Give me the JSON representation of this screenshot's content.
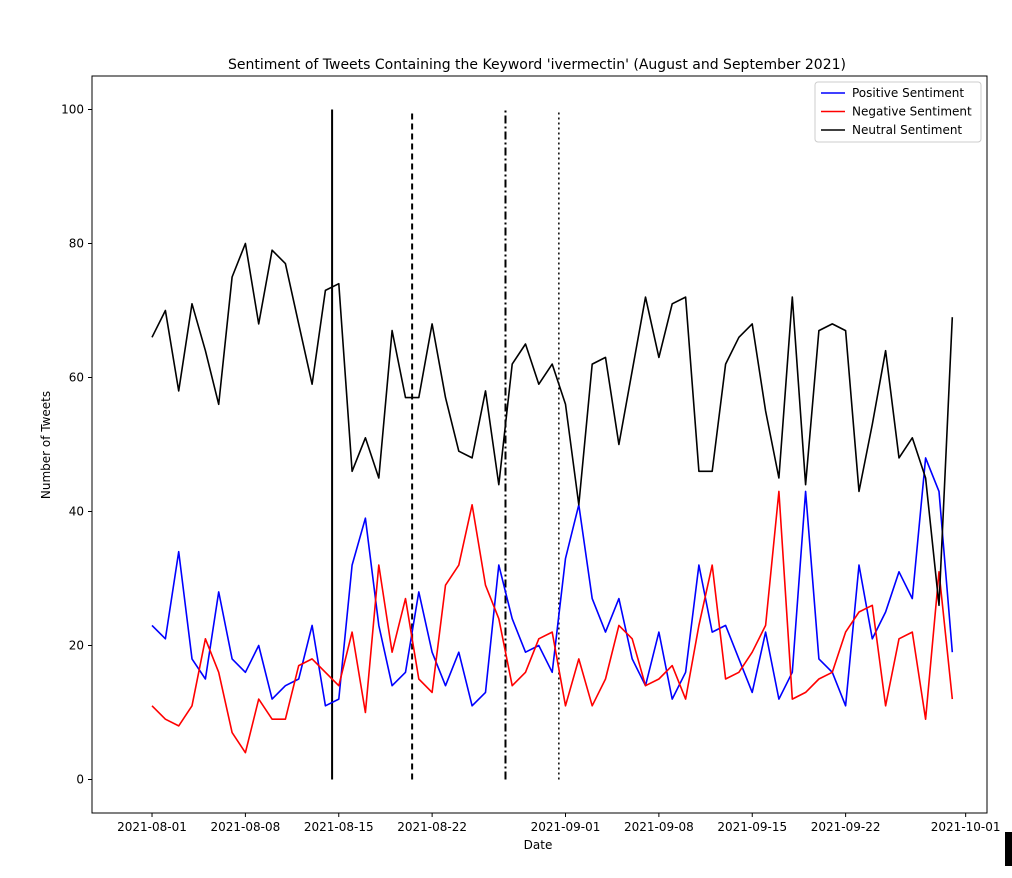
{
  "chart_data": {
    "type": "line",
    "title": "Sentiment of Tweets Containing the Keyword 'ivermectin' (August and September 2021)",
    "xlabel": "Date",
    "ylabel": "Number of Tweets",
    "xlim": [
      -4.5,
      62.6
    ],
    "ylim": [
      -5,
      105
    ],
    "y_ticks": [
      0,
      20,
      40,
      60,
      80,
      100
    ],
    "x_ticks": [
      {
        "label": "2021-08-01",
        "day": 0
      },
      {
        "label": "2021-08-08",
        "day": 7
      },
      {
        "label": "2021-08-15",
        "day": 14
      },
      {
        "label": "2021-08-22",
        "day": 21
      },
      {
        "label": "2021-09-01",
        "day": 31
      },
      {
        "label": "2021-09-08",
        "day": 38
      },
      {
        "label": "2021-09-15",
        "day": 45
      },
      {
        "label": "2021-09-22",
        "day": 52
      },
      {
        "label": "2021-10-01",
        "day": 61
      }
    ],
    "x_start_date": "2021-08-01",
    "legend_position": "upper right",
    "series": [
      {
        "name": "Positive Sentiment",
        "color": "#0000ff",
        "values": [
          23,
          21,
          34,
          18,
          15,
          28,
          18,
          16,
          20,
          12,
          14,
          15,
          23,
          11,
          12,
          32,
          39,
          23,
          14,
          16,
          28,
          19,
          14,
          19,
          11,
          13,
          32,
          24,
          19,
          20,
          16,
          33,
          41,
          27,
          22,
          27,
          18,
          14,
          22,
          12,
          16,
          32,
          22,
          23,
          18,
          13,
          22,
          12,
          16,
          43,
          18,
          16,
          11,
          32,
          21,
          25,
          31,
          27,
          48,
          43,
          19
        ]
      },
      {
        "name": "Negative Sentiment",
        "color": "#ff0000",
        "values": [
          11,
          9,
          8,
          11,
          21,
          16,
          7,
          4,
          12,
          9,
          9,
          17,
          18,
          16,
          14,
          22,
          10,
          32,
          19,
          27,
          15,
          13,
          29,
          32,
          41,
          29,
          24,
          14,
          16,
          21,
          22,
          11,
          18,
          11,
          15,
          23,
          21,
          14,
          15,
          17,
          12,
          23,
          32,
          15,
          16,
          19,
          23,
          43,
          12,
          13,
          15,
          16,
          22,
          25,
          26,
          11,
          21,
          22,
          9,
          31,
          12
        ]
      },
      {
        "name": "Neutral Sentiment",
        "color": "#000000",
        "values": [
          66,
          70,
          58,
          71,
          64,
          56,
          75,
          80,
          68,
          79,
          77,
          68,
          59,
          73,
          74,
          46,
          51,
          45,
          67,
          57,
          57,
          68,
          57,
          49,
          48,
          58,
          44,
          62,
          65,
          59,
          62,
          56,
          41,
          62,
          63,
          50,
          61,
          72,
          63,
          71,
          72,
          46,
          46,
          62,
          66,
          68,
          55,
          45,
          72,
          44,
          67,
          68,
          67,
          43,
          53,
          64,
          48,
          51,
          45,
          26,
          69
        ]
      }
    ],
    "vertical_lines": [
      {
        "day": 13.5,
        "style": "solid"
      },
      {
        "day": 19.5,
        "style": "dashed"
      },
      {
        "day": 26.5,
        "style": "dashdot"
      },
      {
        "day": 30.5,
        "style": "dotted"
      }
    ],
    "vertical_line_range": [
      0,
      100
    ]
  }
}
